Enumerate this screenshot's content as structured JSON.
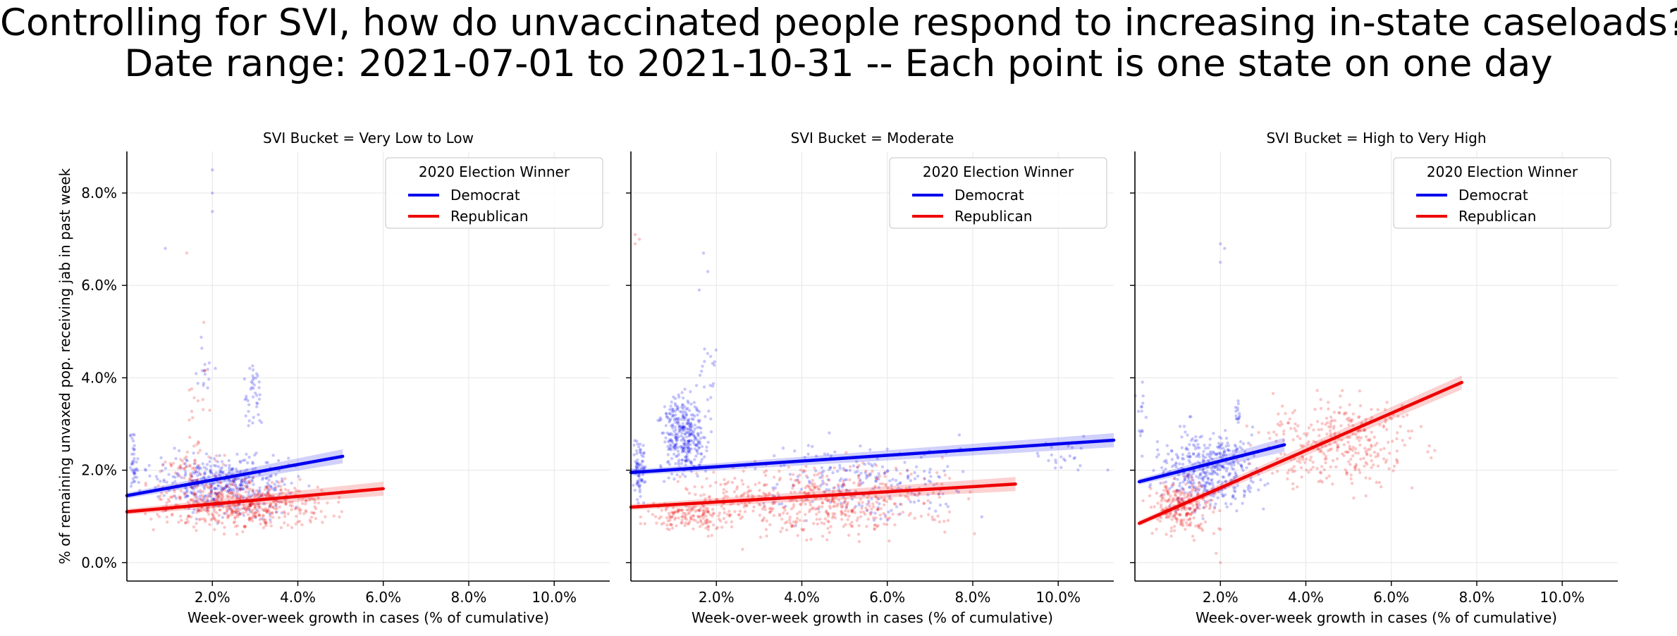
{
  "title": {
    "line1": "Controlling for SVI, how do unvaccinated people respond to increasing in-state caseloads?",
    "line2": "Date range: 2021-07-01 to 2021-10-31 -- Each point is one state on one day"
  },
  "colors": {
    "democrat": "#0000ee",
    "republican": "#ee0000",
    "grid": "#e6e6e6"
  },
  "chart_data": [
    {
      "type": "scatter",
      "panel_title": "SVI Bucket = Very Low to Low",
      "xlabel": "Week-over-week growth in cases (% of cumulative)",
      "ylabel": "% of remaining unvaxed pop. receiving jab in past week",
      "xlim": [
        0.0,
        11.3
      ],
      "ylim": [
        -0.4,
        8.9
      ],
      "xticks": [
        "2.0%",
        "4.0%",
        "6.0%",
        "8.0%",
        "10.0%"
      ],
      "yticks": [
        "0.0%",
        "2.0%",
        "4.0%",
        "6.0%",
        "8.0%"
      ],
      "grid": true,
      "legend": {
        "title": "2020 Election Winner",
        "placement": "top-right",
        "entries": [
          "Democrat",
          "Republican"
        ]
      },
      "series": [
        {
          "name": "Democrat",
          "color": "#0000ee",
          "fit_line": {
            "x": [
              0.0,
              5.05
            ],
            "y": [
              1.45,
              2.3
            ]
          },
          "clusters": [
            {
              "x": [
                0.0,
                4.5
              ],
              "y": [
                0.8,
                2.6
              ],
              "n": 420
            },
            {
              "x": [
                0.0,
                0.3
              ],
              "y": [
                1.2,
                3.0
              ],
              "n": 40
            },
            {
              "x": [
                2.6,
                3.3
              ],
              "y": [
                2.5,
                4.8
              ],
              "n": 40
            },
            {
              "x": [
                1.5,
                2.2
              ],
              "y": [
                3.2,
                5.2
              ],
              "n": 15
            }
          ],
          "outliers": [
            [
              2.0,
              8.5
            ],
            [
              2.0,
              8.0
            ],
            [
              2.0,
              7.6
            ],
            [
              0.9,
              6.8
            ]
          ]
        },
        {
          "name": "Republican",
          "color": "#ee0000",
          "fit_line": {
            "x": [
              0.0,
              6.0
            ],
            "y": [
              1.1,
              1.6
            ]
          },
          "clusters": [
            {
              "x": [
                0.0,
                5.5
              ],
              "y": [
                0.5,
                2.0
              ],
              "n": 520
            },
            {
              "x": [
                0.5,
                2.5
              ],
              "y": [
                1.0,
                3.0
              ],
              "n": 80
            },
            {
              "x": [
                1.2,
                2.0
              ],
              "y": [
                2.6,
                4.9
              ],
              "n": 12
            }
          ],
          "outliers": [
            [
              1.4,
              6.7
            ],
            [
              1.8,
              5.2
            ]
          ]
        }
      ]
    },
    {
      "type": "scatter",
      "panel_title": "SVI Bucket = Moderate",
      "xlabel": "Week-over-week growth in cases (% of cumulative)",
      "ylabel": "",
      "xlim": [
        0.0,
        11.3
      ],
      "ylim": [
        -0.4,
        8.9
      ],
      "xticks": [
        "2.0%",
        "4.0%",
        "6.0%",
        "8.0%",
        "10.0%"
      ],
      "yticks": [
        "0.0%",
        "2.0%",
        "4.0%",
        "6.0%",
        "8.0%"
      ],
      "grid": true,
      "legend": {
        "title": "2020 Election Winner",
        "placement": "top-right",
        "entries": [
          "Democrat",
          "Republican"
        ]
      },
      "series": [
        {
          "name": "Democrat",
          "color": "#0000ee",
          "fit_line": {
            "x": [
              0.0,
              11.3
            ],
            "y": [
              1.95,
              2.65
            ]
          },
          "clusters": [
            {
              "x": [
                0.5,
                2.0
              ],
              "y": [
                1.5,
                4.0
              ],
              "n": 350
            },
            {
              "x": [
                0.0,
                0.4
              ],
              "y": [
                1.0,
                3.0
              ],
              "n": 80
            },
            {
              "x": [
                2.0,
                9.0
              ],
              "y": [
                0.5,
                3.0
              ],
              "n": 220
            },
            {
              "x": [
                1.5,
                2.2
              ],
              "y": [
                3.5,
                5.0
              ],
              "n": 15
            },
            {
              "x": [
                9.0,
                11.3
              ],
              "y": [
                1.8,
                2.8
              ],
              "n": 25
            }
          ],
          "outliers": [
            [
              1.7,
              6.7
            ],
            [
              1.6,
              5.9
            ],
            [
              1.8,
              6.3
            ]
          ]
        },
        {
          "name": "Republican",
          "color": "#ee0000",
          "fit_line": {
            "x": [
              0.0,
              9.0
            ],
            "y": [
              1.2,
              1.7
            ]
          },
          "clusters": [
            {
              "x": [
                0.0,
                8.5
              ],
              "y": [
                0.2,
                2.5
              ],
              "n": 520
            },
            {
              "x": [
                0.0,
                3.0
              ],
              "y": [
                0.5,
                1.5
              ],
              "n": 150
            }
          ],
          "outliers": [
            [
              0.1,
              7.1
            ],
            [
              0.2,
              7.0
            ],
            [
              0.1,
              6.9
            ]
          ]
        }
      ]
    },
    {
      "type": "scatter",
      "panel_title": "SVI Bucket = High to Very High",
      "xlabel": "Week-over-week growth in cases (% of cumulative)",
      "ylabel": "",
      "xlim": [
        0.0,
        11.3
      ],
      "ylim": [
        -0.4,
        8.9
      ],
      "xticks": [
        "2.0%",
        "4.0%",
        "6.0%",
        "8.0%",
        "10.0%"
      ],
      "yticks": [
        "0.0%",
        "2.0%",
        "4.0%",
        "6.0%",
        "8.0%"
      ],
      "grid": true,
      "legend": {
        "title": "2020 Election Winner",
        "placement": "top-right",
        "entries": [
          "Democrat",
          "Republican"
        ]
      },
      "series": [
        {
          "name": "Democrat",
          "color": "#0000ee",
          "fit_line": {
            "x": [
              0.1,
              3.5
            ],
            "y": [
              1.75,
              2.55
            ]
          },
          "clusters": [
            {
              "x": [
                0.1,
                3.5
              ],
              "y": [
                0.8,
                3.2
              ],
              "n": 420
            },
            {
              "x": [
                2.3,
                2.5
              ],
              "y": [
                2.8,
                3.8
              ],
              "n": 15
            },
            {
              "x": [
                0.0,
                0.3
              ],
              "y": [
                2.0,
                4.6
              ],
              "n": 15
            }
          ],
          "outliers": [
            [
              2.0,
              6.9
            ],
            [
              2.0,
              6.5
            ],
            [
              2.1,
              6.8
            ]
          ]
        },
        {
          "name": "Republican",
          "color": "#ee0000",
          "fit_line": {
            "x": [
              0.1,
              7.65
            ],
            "y": [
              0.85,
              3.9
            ]
          },
          "clusters": [
            {
              "x": [
                0.0,
                2.2
              ],
              "y": [
                0.4,
                2.0
              ],
              "n": 250
            },
            {
              "x": [
                2.0,
                7.5
              ],
              "y": [
                1.2,
                4.0
              ],
              "n": 330
            }
          ],
          "outliers": [
            [
              1.9,
              0.2
            ],
            [
              2.0,
              0.0
            ]
          ]
        }
      ]
    }
  ]
}
